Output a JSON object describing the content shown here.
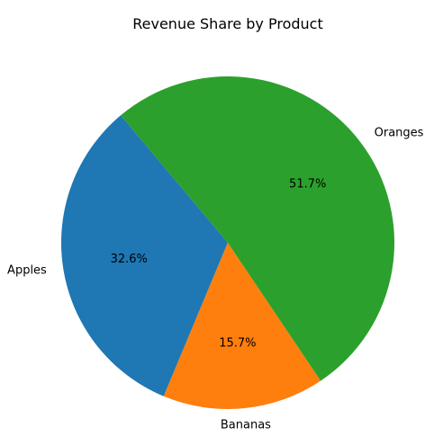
{
  "chart_data": {
    "type": "pie",
    "title": "Revenue Share by Product",
    "slices": [
      {
        "label": "Apples",
        "value": 32.6,
        "pct_label": "32.6%",
        "color": "#1f77b4"
      },
      {
        "label": "Bananas",
        "value": 15.7,
        "pct_label": "15.7%",
        "color": "#ff7f0e"
      },
      {
        "label": "Oranges",
        "value": 51.7,
        "pct_label": "51.7%",
        "color": "#2ca02c"
      }
    ],
    "start_angle_deg": 130,
    "direction": "counterclockwise"
  }
}
